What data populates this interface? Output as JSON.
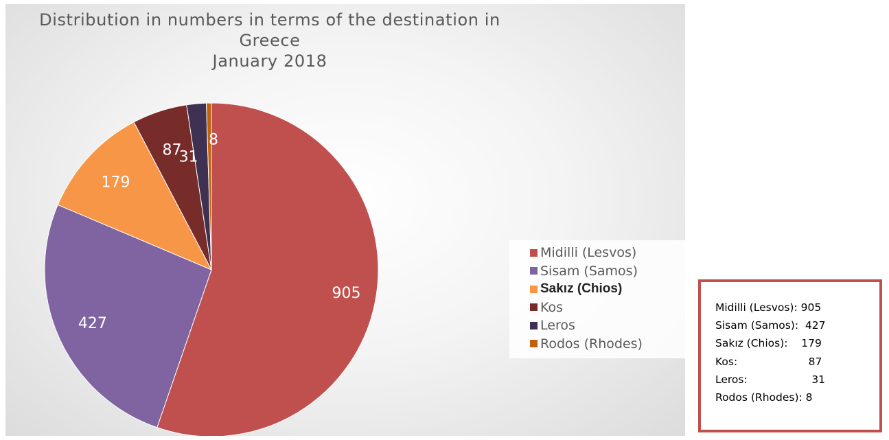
{
  "chart_data": {
    "type": "pie",
    "title": "Distribution  in numbers in terms of the destination in Greece January 2018",
    "title_lines": [
      "Distribution  in numbers in terms of the destination in",
      "Greece",
      "January 2018"
    ],
    "slices": [
      {
        "label": "Midilli (Lesvos)",
        "value": 905,
        "color": "#c0504d"
      },
      {
        "label": "Sisam (Samos)",
        "value": 427,
        "color": "#8064a2"
      },
      {
        "label": "Sakız (Chios)",
        "value": 179,
        "color": "#f79646"
      },
      {
        "label": "Kos",
        "value": 87,
        "color": "#772c2a"
      },
      {
        "label": "Leros",
        "value": 31,
        "color": "#3f3151"
      },
      {
        "label": "Rodos (Rhodes)",
        "value": 8,
        "color": "#c0630f"
      }
    ],
    "data_labels_shown": true,
    "legend_position": "right"
  },
  "summary_box": {
    "lines": [
      "Midilli (Lesvos): 905",
      "Sisam (Samos):  427",
      "Sakız (Chios):    179",
      "Kos:                     87",
      "Leros:                   31",
      "Rodos (Rhodes): 8"
    ]
  }
}
